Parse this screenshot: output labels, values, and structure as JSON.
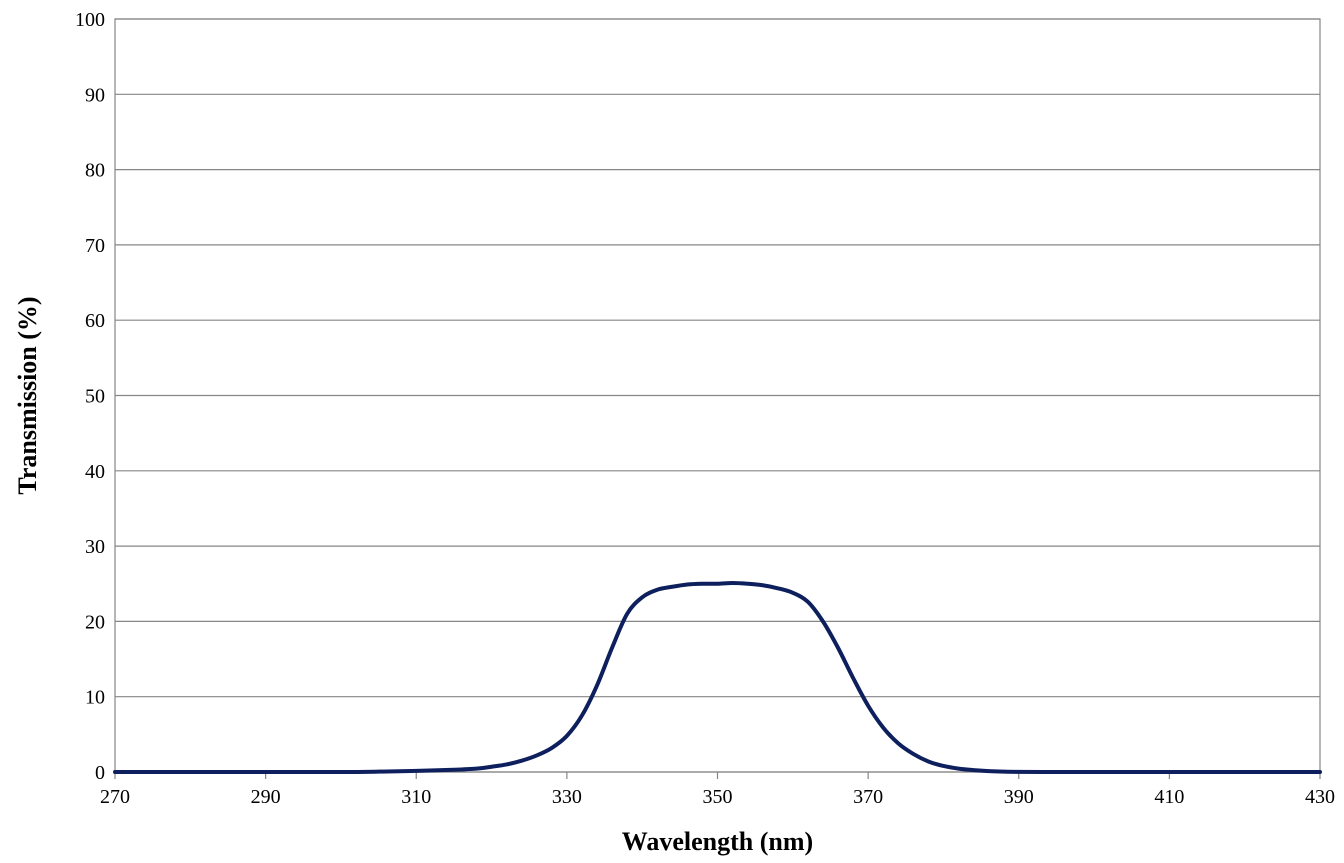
{
  "chart_data": {
    "type": "line",
    "title": "",
    "xlabel": "Wavelength (nm)",
    "ylabel": "Transmission (%)",
    "xlim": [
      270,
      430
    ],
    "ylim": [
      0,
      100
    ],
    "x_ticks": [
      270,
      290,
      310,
      330,
      350,
      370,
      390,
      410,
      430
    ],
    "y_ticks": [
      0,
      10,
      20,
      30,
      40,
      50,
      60,
      70,
      80,
      90,
      100
    ],
    "grid": true,
    "legend": "none",
    "series": [
      {
        "color": "#0d1f5c",
        "x": [
          270,
          280,
          290,
          300,
          305,
          310,
          315,
          318,
          320,
          322,
          324,
          326,
          328,
          330,
          332,
          334,
          336,
          338,
          340,
          342,
          344,
          346,
          348,
          350,
          352,
          354,
          356,
          358,
          360,
          362,
          364,
          366,
          368,
          370,
          372,
          374,
          376,
          378,
          380,
          382,
          384,
          386,
          388,
          390,
          395,
          400,
          410,
          420,
          430
        ],
        "y": [
          0,
          0,
          0,
          0,
          0.05,
          0.15,
          0.3,
          0.45,
          0.7,
          1.0,
          1.5,
          2.2,
          3.2,
          4.8,
          7.5,
          11.5,
          16.5,
          21.0,
          23.2,
          24.2,
          24.6,
          24.9,
          25.0,
          25.0,
          25.1,
          25.0,
          24.8,
          24.4,
          23.8,
          22.6,
          20.0,
          16.5,
          12.5,
          8.8,
          5.9,
          3.8,
          2.4,
          1.4,
          0.8,
          0.45,
          0.25,
          0.12,
          0.05,
          0.02,
          0,
          0,
          0,
          0,
          0
        ]
      }
    ]
  }
}
